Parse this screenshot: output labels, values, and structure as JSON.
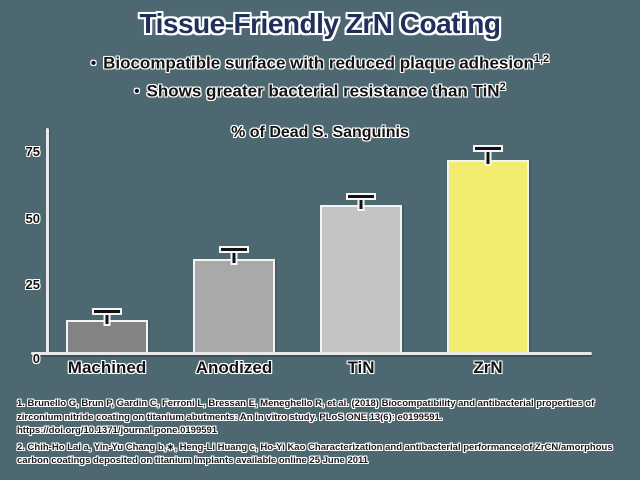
{
  "colors": {
    "background": "#4d6870",
    "title": "#20305c",
    "body_text": "#141414",
    "axis": "#e9e9e9",
    "error_bar": "#121212",
    "accent_yellow": "#f2ec70"
  },
  "slide": {
    "title": "Tissue-Friendly ZrN Coating",
    "bullet_char": "•",
    "bullets": [
      {
        "text": "Biocompatible surface with reduced plaque adhesion",
        "sup": "1,2"
      },
      {
        "text": "Shows greater bacterial resistance than TiN",
        "sup": "2"
      }
    ]
  },
  "chart_data": {
    "type": "bar",
    "title": "% of Dead S. Sanguinis",
    "categories": [
      "Machined",
      "Anodized",
      "TiN",
      "ZrN"
    ],
    "values": [
      12,
      35,
      55,
      72
    ],
    "errors": [
      2,
      2,
      2,
      3
    ],
    "bar_colors": [
      "#838383",
      "#a9a9a9",
      "#c4c4c4",
      "#f2ec70"
    ],
    "xlabel": "",
    "ylabel": "",
    "yticks": [
      0,
      25,
      50,
      75
    ],
    "ylim": [
      0,
      84
    ],
    "grid": false,
    "legend": false
  },
  "footnotes": [
    "1. Brunello G, Brun P, Gardin C, Ferroni L, Bressan E, Meneghello R, et al. (2018) Biocompatibility and antibacterial properties of zirconium nitride coating on titanium abutments: An in vitro study. PLoS ONE 13(6): e0199591.\nhttps://doi.org/10.1371/journal.pone.0199591",
    "2. Chih-Ho Lai a, Yin-Yu Chang b,∗, Heng-Li Huang c, Ho-Yi Kao Characterization and antibacterial performance of ZrCN/amorphous carbon coatings deposited on titanium implants available online 25 June 2011"
  ]
}
